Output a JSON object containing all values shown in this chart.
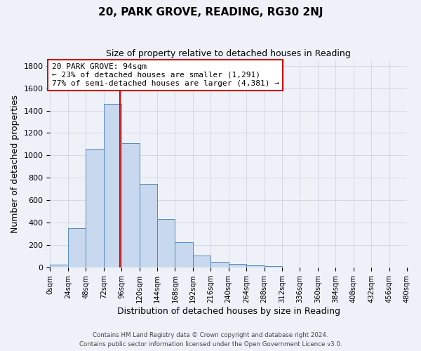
{
  "title": "20, PARK GROVE, READING, RG30 2NJ",
  "subtitle": "Size of property relative to detached houses in Reading",
  "xlabel": "Distribution of detached houses by size in Reading",
  "ylabel": "Number of detached properties",
  "bar_color": "#c8d8ee",
  "bar_edge_color": "#5588bb",
  "background_color": "#eef2f8",
  "plot_bg_color": "#eef2f8",
  "grid_color": "#ccccdd",
  "property_value": 94,
  "vline_color": "#cc0000",
  "annotation_title": "20 PARK GROVE: 94sqm",
  "annotation_line1": "← 23% of detached houses are smaller (1,291)",
  "annotation_line2": "77% of semi-detached houses are larger (4,381) →",
  "annotation_box_color": "#ffffff",
  "annotation_box_edge_color": "#cc0000",
  "bin_edges": [
    0,
    24,
    48,
    72,
    96,
    120,
    144,
    168,
    192,
    216,
    240,
    264,
    288,
    312,
    336,
    360,
    384,
    408,
    432,
    456,
    480
  ],
  "bar_heights": [
    25,
    350,
    1060,
    1460,
    1110,
    745,
    435,
    225,
    110,
    55,
    35,
    18,
    15,
    0,
    0,
    0,
    0,
    0,
    0,
    0
  ],
  "ylim": [
    0,
    1850
  ],
  "yticks": [
    0,
    200,
    400,
    600,
    800,
    1000,
    1200,
    1400,
    1600,
    1800
  ],
  "footer_line1": "Contains HM Land Registry data © Crown copyright and database right 2024.",
  "footer_line2": "Contains public sector information licensed under the Open Government Licence v3.0."
}
